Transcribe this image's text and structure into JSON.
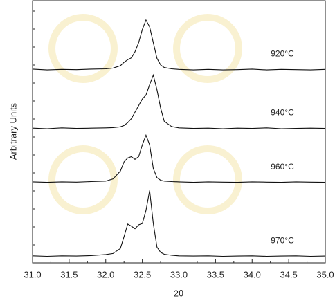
{
  "chart_data": {
    "type": "line",
    "xlabel": "2θ",
    "ylabel": "Arbitrary Units",
    "x": [
      31.0,
      31.2,
      31.4,
      31.6,
      31.8,
      32.0,
      32.1,
      32.2,
      32.25,
      32.3,
      32.35,
      32.4,
      32.45,
      32.5,
      32.55,
      32.6,
      32.65,
      32.7,
      32.75,
      32.8,
      32.9,
      33.0,
      33.2,
      33.4,
      33.6,
      33.8,
      34.0,
      34.2,
      34.4,
      34.6,
      34.8,
      35.0
    ],
    "series": [
      {
        "name": "920°C",
        "color": "#111111",
        "values": [
          73.9,
          73.6,
          73.8,
          73.7,
          73.9,
          74.0,
          74.3,
          75.2,
          76.5,
          77.5,
          78.2,
          80.5,
          84,
          89,
          92.6,
          90,
          84,
          78,
          75.5,
          74.5,
          74.0,
          73.8,
          73.6,
          73.8,
          73.6,
          73.7,
          73.9,
          73.6,
          73.8,
          73.7,
          73.6,
          73.8
        ]
      },
      {
        "name": "940°C",
        "color": "#111111",
        "values": [
          51.4,
          51.2,
          51.5,
          51.3,
          51.4,
          51.5,
          51.6,
          51.9,
          52.4,
          53.5,
          55,
          57.5,
          60,
          62.5,
          64,
          68,
          71.6,
          66,
          59,
          54,
          52,
          51.5,
          51.3,
          51.4,
          51.2,
          51.4,
          51.3,
          51.5,
          51.2,
          51.3,
          51.4,
          51.3
        ]
      },
      {
        "name": "960°C",
        "color": "#111111",
        "values": [
          30.9,
          30.7,
          30.9,
          30.8,
          31.0,
          31.2,
          32,
          35,
          38.5,
          40,
          40.5,
          39.5,
          40.5,
          45,
          48.7,
          45,
          36,
          32.5,
          31.5,
          31.2,
          31.0,
          30.9,
          30.7,
          30.9,
          30.8,
          30.7,
          30.9,
          30.8,
          30.7,
          30.9,
          30.8,
          30.7
        ]
      },
      {
        "name": "970°C",
        "color": "#111111",
        "values": [
          2.7,
          2.5,
          2.7,
          2.6,
          2.8,
          3.2,
          3.6,
          5.5,
          10,
          14.8,
          14,
          13,
          14.5,
          15,
          20,
          27.6,
          15,
          6,
          4,
          3.3,
          2.9,
          2.7,
          2.6,
          2.7,
          2.5,
          2.6,
          2.7,
          2.5,
          2.6,
          2.7,
          2.5,
          2.6
        ]
      }
    ],
    "xlim": [
      31,
      35
    ],
    "xticks": [
      {
        "value": 31,
        "label": "31.0"
      },
      {
        "value": 31.5,
        "label": "31.5"
      },
      {
        "value": 32,
        "label": "32.0"
      },
      {
        "value": 32.5,
        "label": "32.5"
      },
      {
        "value": 33,
        "label": "33.0"
      },
      {
        "value": 33.5,
        "label": "33.5"
      },
      {
        "value": 34,
        "label": "34.0"
      },
      {
        "value": 34.5,
        "label": "34.5"
      },
      {
        "value": 35,
        "label": "35.0"
      }
    ],
    "ylim": [
      0,
      100
    ]
  }
}
